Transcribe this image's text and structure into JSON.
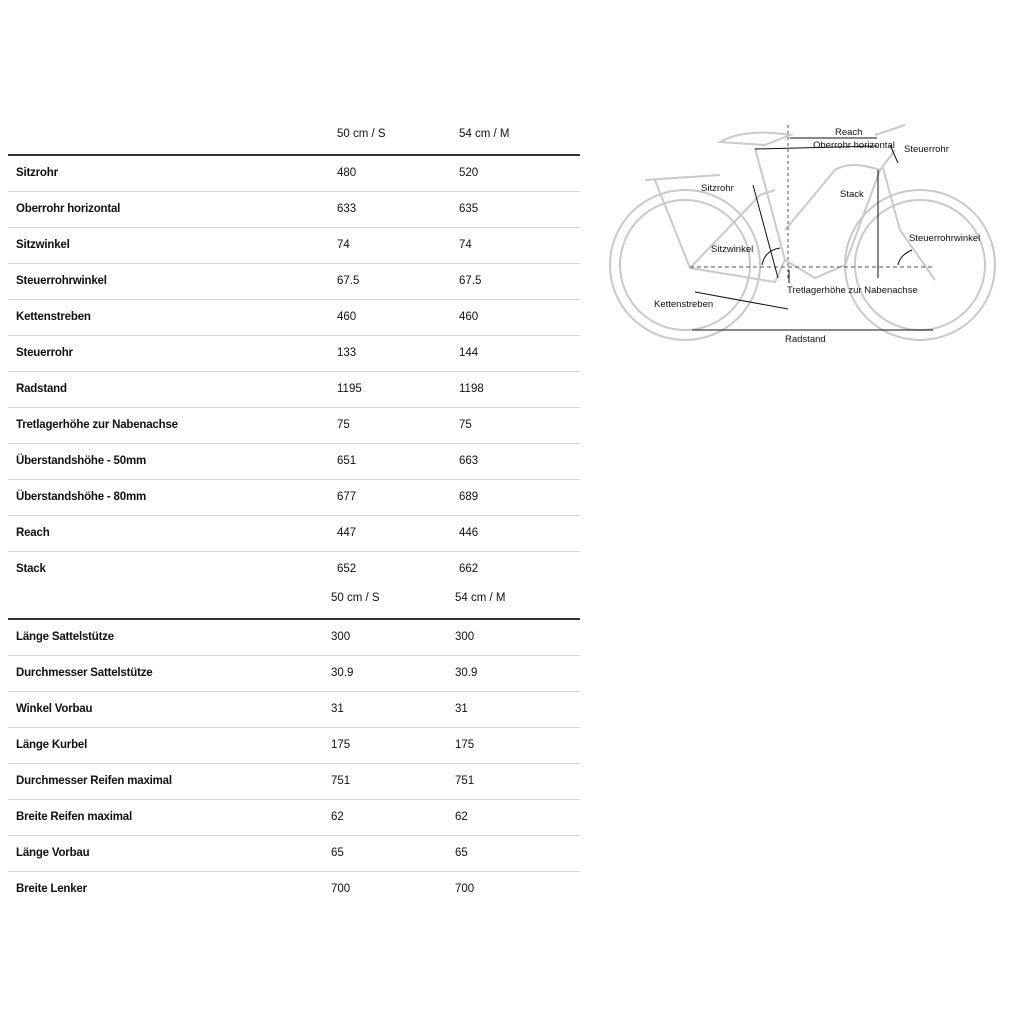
{
  "geometry_table": {
    "columns": [
      "50 cm / S",
      "54 cm / M"
    ],
    "rows": [
      {
        "label": "Sitzrohr",
        "values": [
          "480",
          "520"
        ]
      },
      {
        "label": "Oberrohr horizontal",
        "values": [
          "633",
          "635"
        ]
      },
      {
        "label": "Sitzwinkel",
        "values": [
          "74",
          "74"
        ]
      },
      {
        "label": "Steuerrohrwinkel",
        "values": [
          "67.5",
          "67.5"
        ]
      },
      {
        "label": "Kettenstreben",
        "values": [
          "460",
          "460"
        ]
      },
      {
        "label": "Steuerrohr",
        "values": [
          "133",
          "144"
        ]
      },
      {
        "label": "Radstand",
        "values": [
          "1195",
          "1198"
        ]
      },
      {
        "label": "Tretlagerhöhe zur Nabenachse",
        "values": [
          "75",
          "75"
        ]
      },
      {
        "label": "Überstandshöhe - 50mm",
        "values": [
          "651",
          "663"
        ]
      },
      {
        "label": "Überstandshöhe - 80mm",
        "values": [
          "677",
          "689"
        ]
      },
      {
        "label": "Reach",
        "values": [
          "447",
          "446"
        ]
      },
      {
        "label": "Stack",
        "values": [
          "652",
          "662"
        ]
      }
    ]
  },
  "components_table": {
    "columns": [
      "50 cm / S",
      "54 cm / M"
    ],
    "rows": [
      {
        "label": "Länge Sattelstütze",
        "values": [
          "300",
          "300"
        ]
      },
      {
        "label": "Durchmesser Sattelstütze",
        "values": [
          "30.9",
          "30.9"
        ]
      },
      {
        "label": "Winkel Vorbau",
        "values": [
          "31",
          "31"
        ]
      },
      {
        "label": "Länge Kurbel",
        "values": [
          "175",
          "175"
        ]
      },
      {
        "label": "Durchmesser Reifen maximal",
        "values": [
          "751",
          "751"
        ]
      },
      {
        "label": "Breite Reifen maximal",
        "values": [
          "62",
          "62"
        ]
      },
      {
        "label": "Länge Vorbau",
        "values": [
          "65",
          "65"
        ]
      },
      {
        "label": "Breite Lenker",
        "values": [
          "700",
          "700"
        ]
      }
    ]
  },
  "diagram_labels": {
    "reach": "Reach",
    "oberrohr": "Oberrohr horizontal",
    "steuerrohr": "Steuerrohr",
    "sitzrohr": "Sitzrohr",
    "stack": "Stack",
    "sitzwinkel": "Sitzwinkel",
    "steuerrohrwinkel": "Steuerrohrwinkel",
    "tretlager": "Tretlagerhöhe zur Nabenachse",
    "kettenstreben": "Kettenstreben",
    "radstand": "Radstand"
  }
}
